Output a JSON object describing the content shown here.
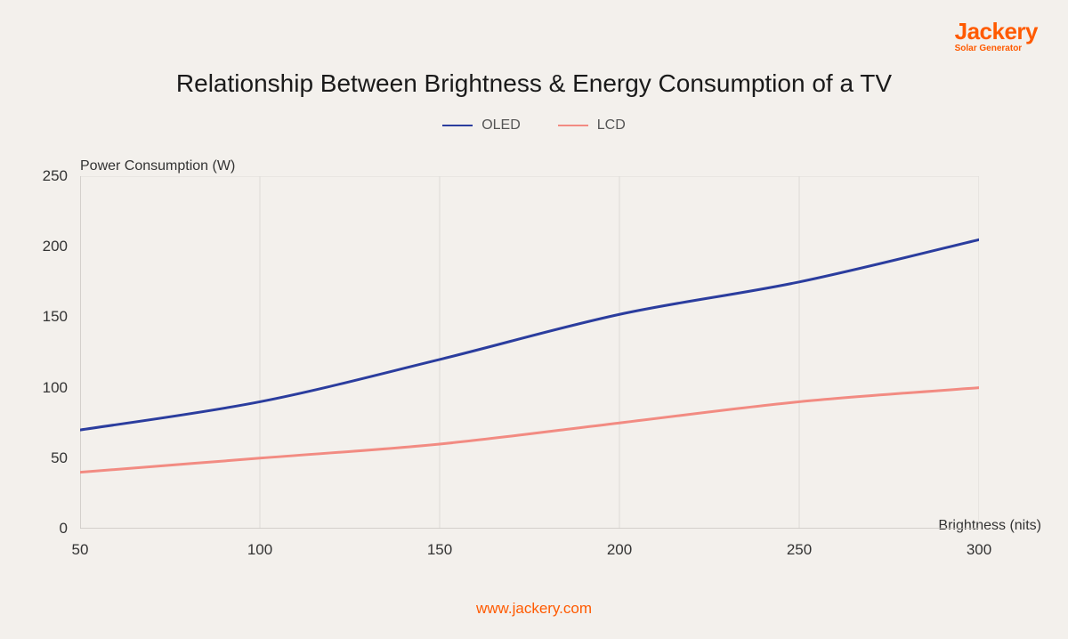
{
  "brand": {
    "name": "Jackery",
    "tagline": "Solar Generator",
    "color": "#ff5a00"
  },
  "title": "Relationship Between Brightness & Energy Consumption of a TV",
  "footer": "www.jackery.com",
  "chart": {
    "type": "line",
    "background_color": "#f3f0ec",
    "grid_color": "#dddad6",
    "axis_color": "#c9c6c2",
    "title_fontsize": 28,
    "label_fontsize": 16,
    "tick_fontsize": 17,
    "line_width": 3,
    "ylabel": "Power Consumption (W)",
    "xlabel": "Brightness (nits)",
    "ylim": [
      0,
      250
    ],
    "ytick_step": 50,
    "y_ticks": [
      0,
      50,
      100,
      150,
      200,
      250
    ],
    "xlim": [
      50,
      300
    ],
    "xtick_step": 50,
    "x_ticks": [
      50,
      100,
      150,
      200,
      250,
      300
    ],
    "legend": [
      {
        "label": "OLED",
        "color": "#2b3d9e"
      },
      {
        "label": "LCD",
        "color": "#f28b82"
      }
    ],
    "series": [
      {
        "name": "OLED",
        "color": "#2b3d9e",
        "x": [
          50,
          100,
          150,
          200,
          250,
          300
        ],
        "y": [
          70,
          90,
          120,
          152,
          175,
          205
        ]
      },
      {
        "name": "LCD",
        "color": "#f28b82",
        "x": [
          50,
          100,
          150,
          200,
          250,
          300
        ],
        "y": [
          40,
          50,
          60,
          75,
          90,
          100
        ]
      }
    ]
  }
}
